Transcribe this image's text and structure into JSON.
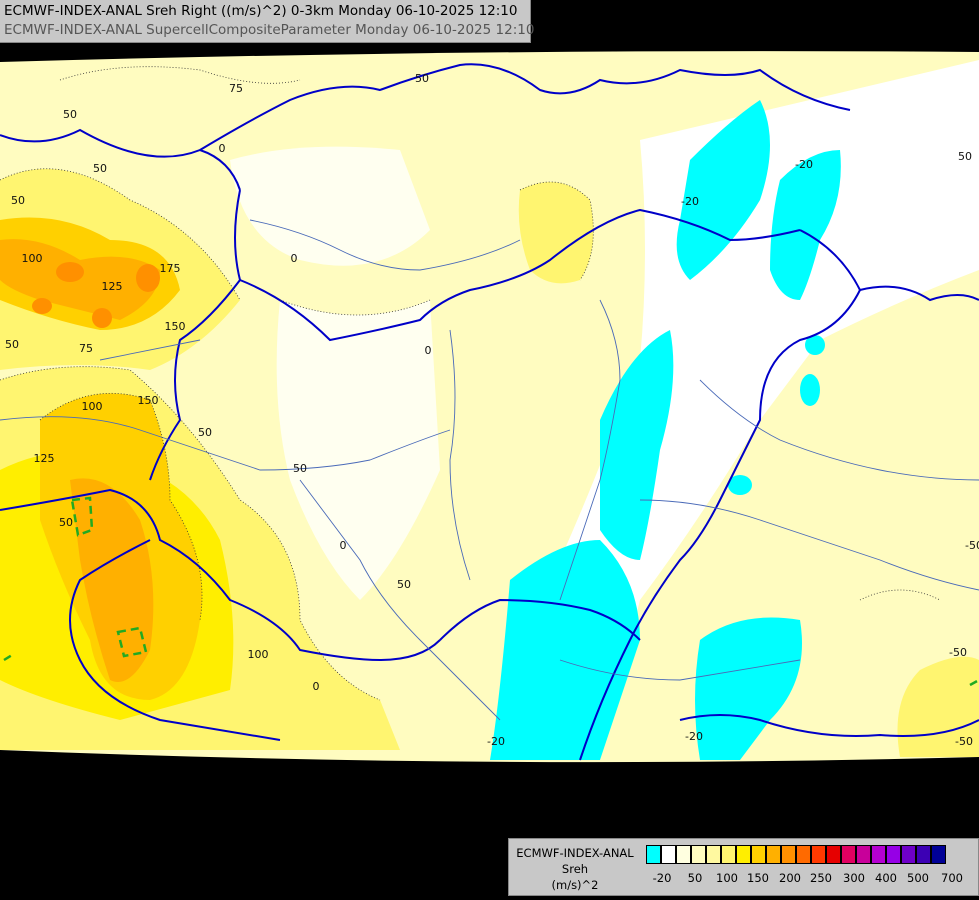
{
  "title": {
    "line1": "ECMWF-INDEX-ANAL Sreh Right ((m/s)^2) 0-3km Monday 06-10-2025 12:10",
    "line2": "ECMWF-INDEX-ANAL SupercellCompositeParameter Monday 06-10-2025 12:10"
  },
  "legend": {
    "model": "ECMWF-INDEX-ANAL",
    "parameter": "Sreh",
    "unit": "(m/s)^2",
    "colors": [
      "#00ffff",
      "#ffffff",
      "#ffffe0",
      "#fffcc0",
      "#fff9a0",
      "#fff570",
      "#ffee00",
      "#ffd000",
      "#ffb000",
      "#ff9000",
      "#ff6a00",
      "#ff3a00",
      "#e60000",
      "#e00060",
      "#c8009a",
      "#b400d0",
      "#9600e6",
      "#6e00c8",
      "#3c00b4",
      "#000096"
    ],
    "ticks": [
      "-20",
      "50",
      "100",
      "150",
      "200",
      "250",
      "300",
      "400",
      "500",
      "700"
    ]
  },
  "contour_labels": [
    "50",
    "75",
    "0",
    "50",
    "50",
    "100",
    "125",
    "175",
    "150",
    "50",
    "75",
    "100",
    "150",
    "125",
    "50",
    "50",
    "50",
    "0",
    "50",
    "0",
    "50",
    "0",
    "100",
    "-20",
    "-20",
    "-20",
    "-20",
    "-50",
    "-50",
    "0",
    "-50",
    "50"
  ],
  "colors": {
    "background": "#000000",
    "paler_yellow": "#fffcc0",
    "yellow": "#fff570",
    "strong_yellow": "#ffee00",
    "orange_light": "#ffd000",
    "orange": "#ffb000",
    "orange_dark": "#ff9000",
    "red_orange": "#ff6a00",
    "cyan": "#00ffff",
    "border_blue": "#0000c8",
    "river_blue": "#4a6ab8",
    "scp_green": "#22aa22"
  }
}
